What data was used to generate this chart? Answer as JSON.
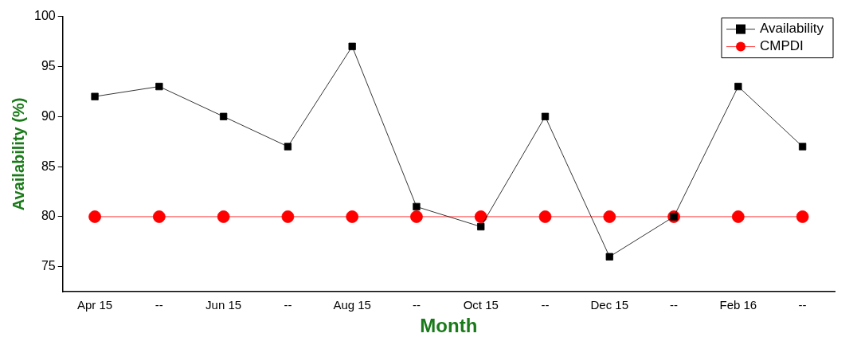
{
  "chart_data": {
    "type": "line",
    "xlabel": "Month",
    "ylabel": "Availability (%)",
    "categories": [
      "Apr 15",
      "--",
      "Jun 15",
      "--",
      "Aug 15",
      "--",
      "Oct 15",
      "--",
      "Dec 15",
      "--",
      "Feb 16",
      "--"
    ],
    "series": [
      {
        "name": "Availability",
        "color": "#000000",
        "marker": "square",
        "values": [
          92,
          93,
          90,
          87,
          97,
          81,
          79,
          90,
          76,
          80,
          93,
          87
        ]
      },
      {
        "name": "CMPDI",
        "color": "#ff0000",
        "marker": "circle",
        "values": [
          80,
          80,
          80,
          80,
          80,
          80,
          80,
          80,
          80,
          80,
          80,
          80
        ]
      }
    ],
    "ylim": [
      72.5,
      100
    ],
    "yticks": [
      75,
      80,
      85,
      90,
      95,
      100
    ],
    "grid": false,
    "legend": "top right",
    "line_style": "solid"
  }
}
